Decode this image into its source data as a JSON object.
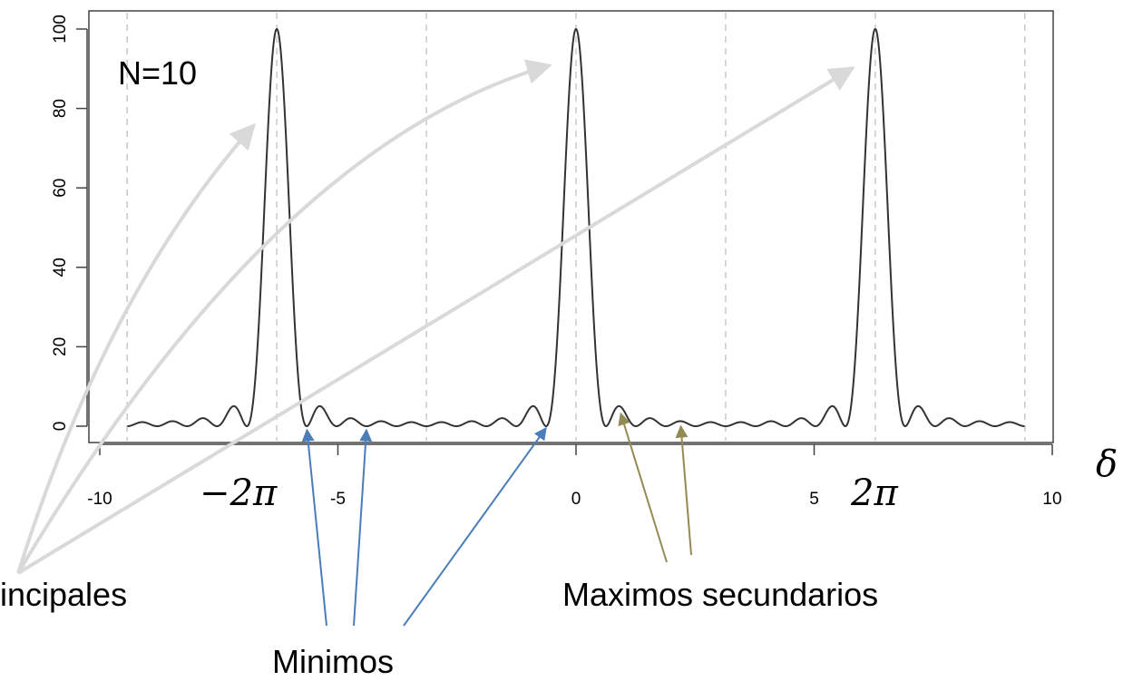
{
  "chart_data": {
    "type": "line",
    "title": "",
    "xlabel": "δ",
    "ylabel": "",
    "xlim": [
      -10,
      10
    ],
    "ylim": [
      0,
      100
    ],
    "xticks": [
      -10,
      -5,
      0,
      5,
      10
    ],
    "yticks": [
      0,
      20,
      40,
      60,
      80,
      100
    ],
    "grid": "vertical dashed lines at multiples of π",
    "function": "sin²(Nδ/2) / sin²(δ/2)",
    "N": 10,
    "x_domain": [
      -9.42,
      9.42
    ],
    "series": [
      {
        "name": "",
        "color": "#333333"
      }
    ],
    "principal_peaks": [
      {
        "x": -6.283,
        "y": 100,
        "label": "−2π"
      },
      {
        "x": 0,
        "y": 100
      },
      {
        "x": 6.283,
        "y": 100,
        "label": "2π"
      }
    ],
    "secondary_maxima_example": [
      {
        "x": 0.94,
        "y": 4.7
      },
      {
        "x": 2.2,
        "y": 1.0
      }
    ],
    "minima_example": [
      {
        "x": -5.65,
        "y": 0
      },
      {
        "x": -4.4,
        "y": 0
      },
      {
        "x": -0.63,
        "y": 0
      }
    ],
    "annotations": {
      "n_label": "N=10",
      "neg_two_pi": "−2π",
      "two_pi": "2π",
      "principales": "incipales",
      "secundarios": "Maximos secundarios",
      "minimos": "Minimos"
    },
    "colors": {
      "curve": "#333333",
      "grid": "#c8c8c8",
      "principal_arrows": "#d9d9d9",
      "minimos_arrows": "#4a7ebb",
      "secundarios_arrows": "#948a54"
    }
  }
}
